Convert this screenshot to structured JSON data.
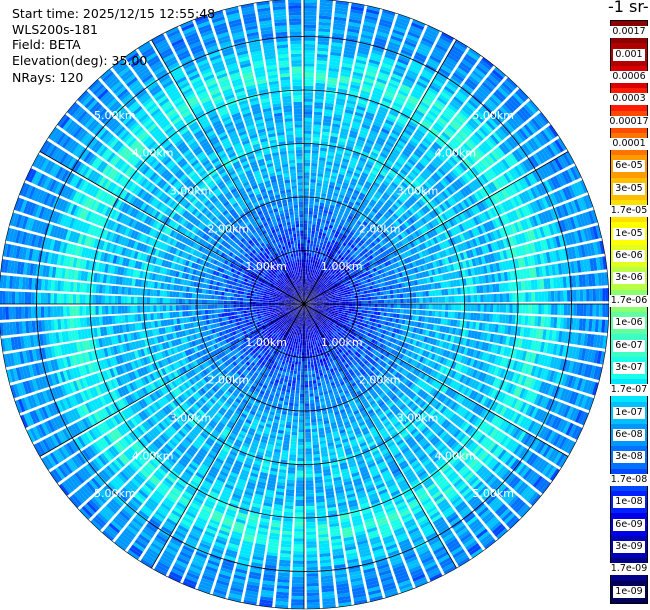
{
  "info": {
    "start_time": "Start time: 2025/12/15 12:55:48",
    "instrument": "WLS200s-181",
    "field": "Field: BETA",
    "elevation": "Elevation(deg): 35.00",
    "nrays": "NRays: 120"
  },
  "colorbar": {
    "unit_label": "-1 sr-",
    "levels": [
      "0.0017",
      "0.001",
      "0.0006",
      "0.0003",
      "0.00017",
      "0.0001",
      "6e-05",
      "3e-05",
      "1.7e-05",
      "1e-05",
      "6e-06",
      "3e-06",
      "1.7e-06",
      "1e-06",
      "6e-07",
      "3e-07",
      "1.7e-07",
      "1e-07",
      "6e-08",
      "3e-08",
      "1.7e-08",
      "1e-08",
      "6e-09",
      "3e-09",
      "1.7e-09",
      "1e-09"
    ],
    "colors": [
      "#8b0000",
      "#b00000",
      "#d80000",
      "#ff1a00",
      "#ff4a00",
      "#ff7400",
      "#ff9a00",
      "#ffbf00",
      "#ffe000",
      "#ffff00",
      "#e2ff1e",
      "#b8ff46",
      "#8cff73",
      "#62ffa0",
      "#3cffc6",
      "#1afee8",
      "#00e6ff",
      "#00c0ff",
      "#0098ff",
      "#0072ff",
      "#0048ff",
      "#0020ff",
      "#0000e6",
      "#0000b4",
      "#000088",
      "#00005a"
    ]
  },
  "chart_data": {
    "type": "heatmap",
    "projection": "polar",
    "title": "",
    "field": "BETA",
    "elevation_deg": 35.0,
    "n_rays": 120,
    "azimuth_range_deg": [
      0,
      360
    ],
    "range_rings_km": [
      1,
      2,
      3,
      4,
      5
    ],
    "max_range_km": 5.7,
    "ring_labels": [
      "1.00km",
      "2.00km",
      "3.00km",
      "4.00km",
      "5.00km"
    ],
    "colorscale": "log",
    "value_range": [
      1e-09,
      0.0017
    ],
    "radial_profile": [
      {
        "range_km": 0.0,
        "beta": 1e-09
      },
      {
        "range_km": 1.0,
        "beta": 1e-08
      },
      {
        "range_km": 2.0,
        "beta": 4e-08
      },
      {
        "range_km": 3.0,
        "beta": 1e-07
      },
      {
        "range_km": 3.6,
        "beta": 6e-08
      },
      {
        "range_km": 4.3,
        "beta": 2.5e-07
      },
      {
        "range_km": 5.0,
        "beta": 5e-08
      },
      {
        "range_km": 5.7,
        "beta": 3e-08
      }
    ]
  }
}
